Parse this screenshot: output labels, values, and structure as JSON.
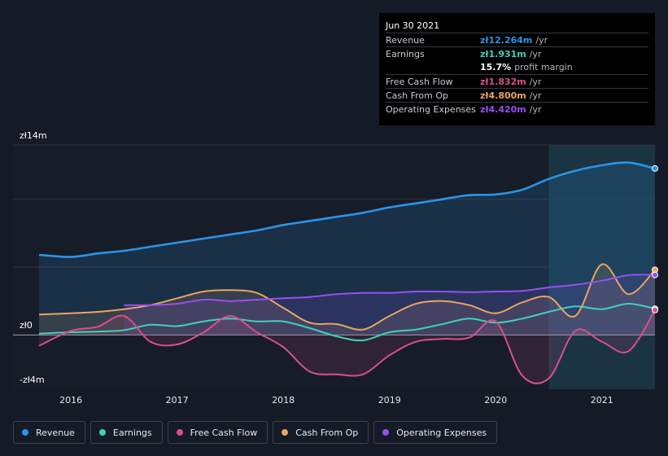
{
  "chart_data": {
    "type": "line",
    "y_unit_labels": [
      "zł14m",
      "zł0",
      "-zł4m"
    ],
    "ylim": [
      -4,
      14
    ],
    "xlim": [
      2015.7,
      2021.5
    ],
    "x_ticks": [
      {
        "label": "2016",
        "value": 2016.0
      },
      {
        "label": "2017",
        "value": 2017.0
      },
      {
        "label": "2018",
        "value": 2018.0
      },
      {
        "label": "2019",
        "value": 2019.0
      },
      {
        "label": "2020",
        "value": 2020.0
      },
      {
        "label": "2021",
        "value": 2021.0
      }
    ],
    "highlight_range": [
      2020.5,
      2021.5
    ],
    "series": [
      {
        "name": "Revenue",
        "color": "#2a94e6",
        "fill": true,
        "x": [
          2015.7,
          2016.0,
          2016.25,
          2016.5,
          2016.75,
          2017.0,
          2017.25,
          2017.5,
          2017.75,
          2018.0,
          2018.25,
          2018.5,
          2018.75,
          2019.0,
          2019.25,
          2019.5,
          2019.75,
          2020.0,
          2020.25,
          2020.5,
          2020.75,
          2021.0,
          2021.25,
          2021.5
        ],
        "y": [
          5.9,
          5.75,
          6.0,
          6.2,
          6.5,
          6.8,
          7.1,
          7.4,
          7.7,
          8.1,
          8.4,
          8.7,
          9.0,
          9.4,
          9.7,
          10.0,
          10.3,
          10.35,
          10.7,
          11.5,
          12.1,
          12.5,
          12.7,
          12.264
        ]
      },
      {
        "name": "Earnings",
        "color": "#3fd1be",
        "fill": false,
        "x": [
          2015.7,
          2016.0,
          2016.25,
          2016.5,
          2016.75,
          2017.0,
          2017.25,
          2017.5,
          2017.75,
          2018.0,
          2018.25,
          2018.5,
          2018.75,
          2019.0,
          2019.25,
          2019.5,
          2019.75,
          2020.0,
          2020.25,
          2020.5,
          2020.75,
          2021.0,
          2021.25,
          2021.5
        ],
        "y": [
          0.1,
          0.2,
          0.25,
          0.35,
          0.75,
          0.65,
          1.0,
          1.2,
          1.0,
          1.0,
          0.5,
          -0.1,
          -0.4,
          0.2,
          0.4,
          0.8,
          1.2,
          0.9,
          1.2,
          1.7,
          2.1,
          1.9,
          2.3,
          1.931
        ]
      },
      {
        "name": "Free Cash Flow",
        "color": "#d94f8a",
        "fill": true,
        "x": [
          2015.7,
          2016.0,
          2016.25,
          2016.5,
          2016.75,
          2017.0,
          2017.25,
          2017.5,
          2017.75,
          2018.0,
          2018.25,
          2018.5,
          2018.75,
          2019.0,
          2019.25,
          2019.5,
          2019.75,
          2020.0,
          2020.25,
          2020.5,
          2020.75,
          2021.0,
          2021.25,
          2021.5
        ],
        "y": [
          -0.8,
          0.3,
          0.6,
          1.4,
          -0.5,
          -0.7,
          0.2,
          1.4,
          0.2,
          -0.9,
          -2.7,
          -2.9,
          -2.9,
          -1.5,
          -0.5,
          -0.3,
          -0.2,
          1.0,
          -3.0,
          -3.2,
          0.3,
          -0.5,
          -1.2,
          1.832
        ]
      },
      {
        "name": "Cash From Op",
        "color": "#e8a562",
        "fill": true,
        "x": [
          2015.7,
          2016.0,
          2016.25,
          2016.5,
          2016.75,
          2017.0,
          2017.25,
          2017.5,
          2017.75,
          2018.0,
          2018.25,
          2018.5,
          2018.75,
          2019.0,
          2019.25,
          2019.5,
          2019.75,
          2020.0,
          2020.25,
          2020.5,
          2020.75,
          2021.0,
          2021.25,
          2021.5
        ],
        "y": [
          1.5,
          1.6,
          1.7,
          1.9,
          2.2,
          2.7,
          3.2,
          3.3,
          3.1,
          2.0,
          0.9,
          0.8,
          0.4,
          1.4,
          2.3,
          2.5,
          2.2,
          1.6,
          2.4,
          2.8,
          1.4,
          5.2,
          3.0,
          4.8
        ]
      },
      {
        "name": "Operating Expenses",
        "color": "#9a4ef0",
        "fill": true,
        "x": [
          2016.5,
          2016.75,
          2017.0,
          2017.25,
          2017.5,
          2017.75,
          2018.0,
          2018.25,
          2018.5,
          2018.75,
          2019.0,
          2019.25,
          2019.5,
          2019.75,
          2020.0,
          2020.25,
          2020.5,
          2020.75,
          2021.0,
          2021.25,
          2021.5
        ],
        "y": [
          2.2,
          2.2,
          2.3,
          2.6,
          2.5,
          2.6,
          2.7,
          2.8,
          3.0,
          3.1,
          3.1,
          3.2,
          3.2,
          3.15,
          3.2,
          3.25,
          3.5,
          3.7,
          4.0,
          4.4,
          4.42
        ]
      }
    ]
  },
  "tooltip": {
    "date": "Jun 30 2021",
    "rows": [
      {
        "label": "Revenue",
        "value": "zł12.264m",
        "unit": "/yr",
        "color": "#2a94e6"
      },
      {
        "label": "Earnings",
        "value": "zł1.931m",
        "unit": "/yr",
        "color": "#3fd1be"
      },
      {
        "label": "",
        "value": "15.7%",
        "unit": "profit margin",
        "color": "#ffffff"
      },
      {
        "label": "Free Cash Flow",
        "value": "zł1.832m",
        "unit": "/yr",
        "color": "#d94f8a"
      },
      {
        "label": "Cash From Op",
        "value": "zł4.800m",
        "unit": "/yr",
        "color": "#e8a562"
      },
      {
        "label": "Operating Expenses",
        "value": "zł4.420m",
        "unit": "/yr",
        "color": "#9a4ef0"
      }
    ]
  },
  "legend": [
    {
      "label": "Revenue",
      "color": "#2a94e6"
    },
    {
      "label": "Earnings",
      "color": "#3fd1be"
    },
    {
      "label": "Free Cash Flow",
      "color": "#d94f8a"
    },
    {
      "label": "Cash From Op",
      "color": "#e8a562"
    },
    {
      "label": "Operating Expenses",
      "color": "#9a4ef0"
    }
  ]
}
